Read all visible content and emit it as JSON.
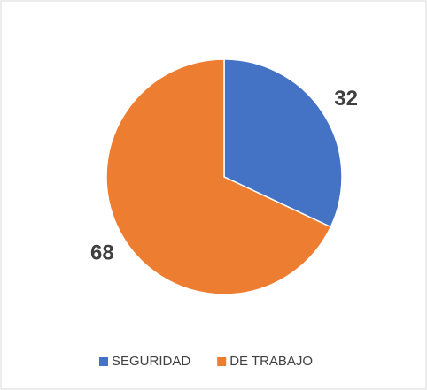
{
  "chart_data": {
    "type": "pie",
    "categories": [
      "SEGURIDAD",
      "DE TRABAJO"
    ],
    "values": [
      32,
      68
    ],
    "colors": [
      "#4472c4",
      "#ed7d31"
    ],
    "legend": "bottom"
  }
}
